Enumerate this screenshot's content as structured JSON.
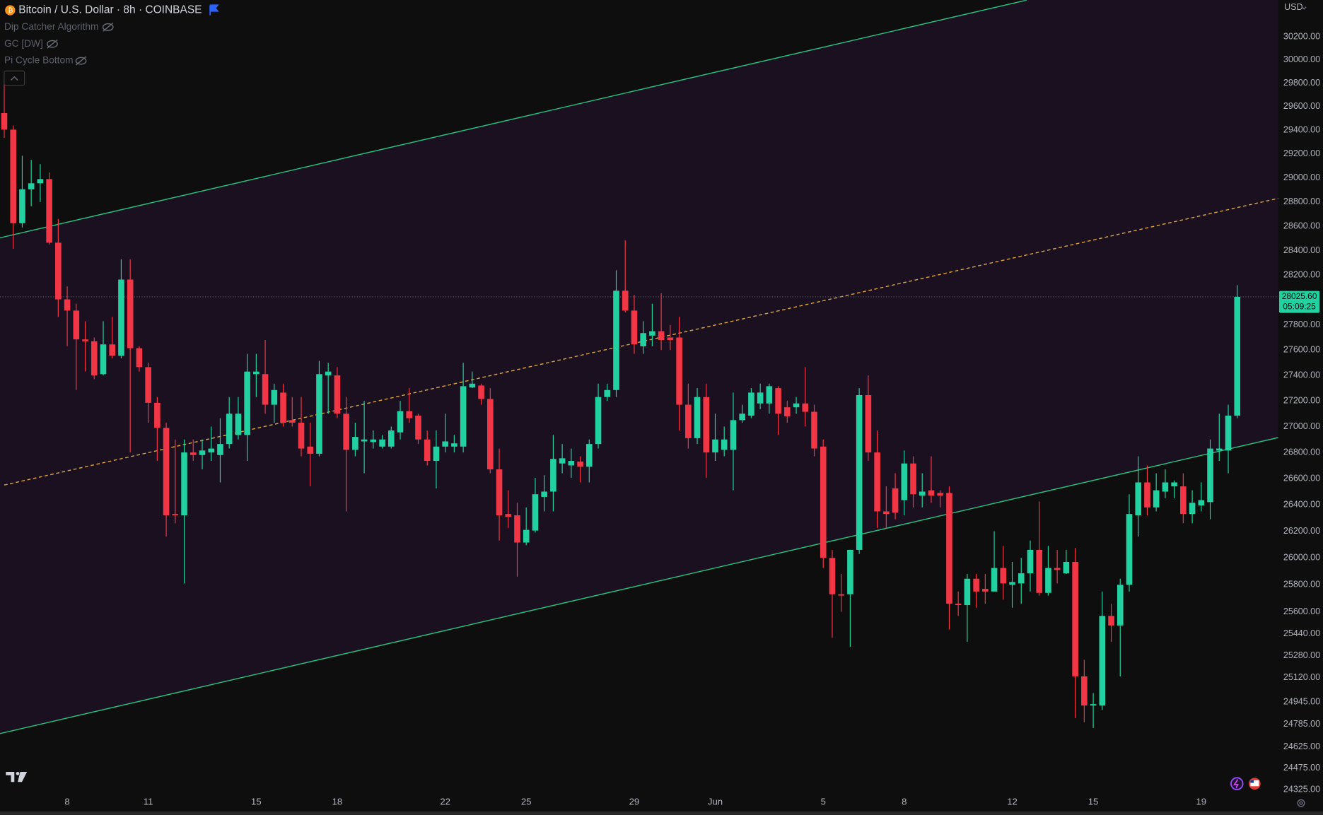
{
  "chart_data": {
    "type": "candlestick",
    "title": "Bitcoin / U.S. Dollar · 8h · COINBASE",
    "indicators": [
      "Dip Catcher Algorithm",
      "GC [DW]",
      "Pi Cycle Bottom"
    ],
    "currency": "USD",
    "log_scale": true,
    "up_color": "#22d1a0",
    "down_color": "#f23645",
    "xlim": [
      -0.47,
      141.56
    ],
    "ylim": [
      24290,
      30520
    ],
    "xticks": [
      {
        "value": 7,
        "label": "8"
      },
      {
        "value": 16,
        "label": "11"
      },
      {
        "value": 28,
        "label": "15"
      },
      {
        "value": 37,
        "label": "18"
      },
      {
        "value": 49,
        "label": "22"
      },
      {
        "value": 58,
        "label": "25"
      },
      {
        "value": 70,
        "label": "29"
      },
      {
        "value": 79,
        "label": "Jun"
      },
      {
        "value": 91,
        "label": "5"
      },
      {
        "value": 100,
        "label": "8"
      },
      {
        "value": 112,
        "label": "12"
      },
      {
        "value": 121,
        "label": "15"
      },
      {
        "value": 133,
        "label": "19"
      }
    ],
    "yticks": [
      {
        "value": 30200,
        "label": "30200.00"
      },
      {
        "value": 30000,
        "label": "30000.00"
      },
      {
        "value": 29800,
        "label": "29800.00"
      },
      {
        "value": 29600,
        "label": "29600.00"
      },
      {
        "value": 29400,
        "label": "29400.00"
      },
      {
        "value": 29200,
        "label": "29200.00"
      },
      {
        "value": 29000,
        "label": "29000.00"
      },
      {
        "value": 28800,
        "label": "28800.00"
      },
      {
        "value": 28600,
        "label": "28600.00"
      },
      {
        "value": 28400,
        "label": "28400.00"
      },
      {
        "value": 28200,
        "label": "28200.00"
      },
      {
        "value": 27800,
        "label": "27800.00"
      },
      {
        "value": 27600,
        "label": "27600.00"
      },
      {
        "value": 27400,
        "label": "27400.00"
      },
      {
        "value": 27200,
        "label": "27200.00"
      },
      {
        "value": 27000,
        "label": "27000.00"
      },
      {
        "value": 26800,
        "label": "26800.00"
      },
      {
        "value": 26600,
        "label": "26600.00"
      },
      {
        "value": 26400,
        "label": "26400.00"
      },
      {
        "value": 26200,
        "label": "26200.00"
      },
      {
        "value": 26000,
        "label": "26000.00"
      },
      {
        "value": 25800,
        "label": "25800.00"
      },
      {
        "value": 25600,
        "label": "25600.00"
      },
      {
        "value": 25440,
        "label": "25440.00"
      },
      {
        "value": 25280,
        "label": "25280.00"
      },
      {
        "value": 25120,
        "label": "25120.00"
      },
      {
        "value": 24945,
        "label": "24945.00"
      },
      {
        "value": 24785,
        "label": "24785.00"
      },
      {
        "value": 24625,
        "label": "24625.00"
      },
      {
        "value": 24475,
        "label": "24475.00"
      },
      {
        "value": 24325,
        "label": "24325.00"
      }
    ],
    "last_price": {
      "value": 28025.6,
      "label": "28025.60"
    },
    "countdown": "05:09:25",
    "open": [
      29545,
      29405,
      28625,
      28905,
      28955,
      28990,
      28465,
      28005,
      27915,
      27685,
      27670,
      27410,
      27645,
      27555,
      28165,
      27615,
      27465,
      27185,
      26990,
      26330,
      26320,
      26800,
      26780,
      26800,
      26780,
      26865,
      26935,
      26935,
      27410,
      27410,
      27170,
      27265,
      27050,
      27030,
      26845,
      26790,
      27400,
      27400,
      27100,
      26820,
      26885,
      26880,
      26845,
      26845,
      26955,
      27120,
      27085,
      26900,
      26735,
      26845,
      26845,
      26845,
      27305,
      27320,
      27215,
      26670,
      26330,
      26320,
      26115,
      26205,
      26460,
      26500,
      26715,
      26700,
      26730,
      26690,
      26865,
      27230,
      27285,
      28075,
      27915,
      27630,
      27715,
      27750,
      27700,
      27700,
      27170,
      26910,
      27230,
      26800,
      26820,
      26820,
      27050,
      27085,
      27180,
      27180,
      27300,
      27150,
      27150,
      27180,
      27115,
      26845,
      26000,
      25730,
      25730,
      26060,
      27245,
      26800,
      26350,
      26525,
      26435,
      26715,
      26470,
      26510,
      26490,
      26490,
      25660,
      25650,
      25845,
      25770,
      25750,
      25925,
      25800,
      25810,
      25885,
      26060,
      25740,
      25925,
      25885,
      25970,
      25130,
      24920,
      24920,
      25570,
      25500,
      25800,
      26320,
      26570,
      26380,
      26500,
      26540,
      26540,
      26330,
      26395,
      26420,
      26815,
      26815,
      27085
    ],
    "high": [
      29830,
      29440,
      29185,
      29150,
      29115,
      29045,
      28660,
      28110,
      27970,
      27830,
      27700,
      27830,
      27865,
      28330,
      28330,
      27630,
      27500,
      27230,
      27030,
      26900,
      26900,
      26900,
      26900,
      27000,
      27065,
      27230,
      27230,
      27570,
      27570,
      27680,
      27335,
      27335,
      27230,
      27230,
      27030,
      27515,
      27500,
      27465,
      27230,
      27030,
      27200,
      26970,
      26935,
      27000,
      27200,
      27300,
      27100,
      26970,
      26970,
      27100,
      26935,
      27500,
      27430,
      27335,
      27300,
      26830,
      26510,
      26415,
      26380,
      26605,
      26625,
      26935,
      26865,
      26830,
      26770,
      26900,
      27335,
      27335,
      28240,
      28485,
      28040,
      27830,
      27970,
      28055,
      27800,
      27865,
      27335,
      27300,
      27335,
      27100,
      27000,
      27265,
      27170,
      27300,
      27335,
      27335,
      27315,
      27200,
      27230,
      27465,
      27170,
      26900,
      26060,
      25880,
      26060,
      27300,
      27400,
      26970,
      26540,
      26640,
      26815,
      26770,
      26640,
      26770,
      26510,
      26540,
      25750,
      25880,
      25880,
      25880,
      26200,
      26090,
      25970,
      26000,
      26130,
      26425,
      26090,
      26060,
      26060,
      26075,
      25250,
      25010,
      25750,
      25660,
      25845,
      26480,
      26770,
      26700,
      26640,
      26670,
      26585,
      26640,
      26510,
      26570,
      26900,
      27100,
      27170,
      28120
    ],
    "low": [
      29335,
      28415,
      28590,
      28765,
      28800,
      28450,
      27865,
      27630,
      27285,
      27430,
      27370,
      27400,
      27535,
      27535,
      26800,
      27430,
      27030,
      26735,
      26160,
      26260,
      25810,
      26735,
      26670,
      26735,
      26570,
      26830,
      26900,
      26735,
      27230,
      27100,
      27030,
      27000,
      27000,
      26770,
      26540,
      26770,
      27100,
      27065,
      26350,
      26770,
      26640,
      26830,
      26830,
      26830,
      26900,
      27030,
      26865,
      26700,
      26525,
      26800,
      26800,
      26800,
      27300,
      27170,
      26640,
      26130,
      26225,
      25860,
      26095,
      26190,
      26350,
      26350,
      26640,
      26605,
      26570,
      26570,
      26830,
      27200,
      27230,
      27900,
      27570,
      27570,
      27630,
      27600,
      27600,
      26970,
      26830,
      26865,
      26605,
      26735,
      26770,
      26510,
      27030,
      27065,
      27135,
      27100,
      26935,
      27030,
      27100,
      27000,
      26770,
      25925,
      25410,
      25600,
      25345,
      26030,
      26735,
      26225,
      26225,
      26290,
      26320,
      26380,
      26380,
      26415,
      26380,
      25470,
      25570,
      25380,
      25630,
      25660,
      25750,
      25690,
      25630,
      25660,
      25750,
      25720,
      25720,
      25810,
      25880,
      24830,
      24800,
      24760,
      24890,
      25380,
      25130,
      25750,
      26160,
      26320,
      26350,
      26450,
      26450,
      26260,
      26260,
      26350,
      26290,
      26735,
      26640,
      27065
    ],
    "close": [
      29405,
      28625,
      28905,
      28955,
      28990,
      28465,
      28005,
      27915,
      27685,
      27670,
      27400,
      27645,
      27555,
      28165,
      27615,
      27465,
      27185,
      26990,
      26320,
      26320,
      26800,
      26780,
      26815,
      26830,
      26865,
      27100,
      27100,
      27430,
      27430,
      27170,
      27285,
      27030,
      27030,
      26830,
      26790,
      27410,
      27430,
      27100,
      26820,
      26920,
      26900,
      26900,
      26900,
      26970,
      27120,
      27065,
      26900,
      26735,
      26845,
      26885,
      26870,
      27315,
      27335,
      27215,
      26670,
      26320,
      26310,
      26115,
      26210,
      26480,
      26500,
      26750,
      26755,
      26735,
      26690,
      26865,
      27230,
      27285,
      28075,
      27915,
      27645,
      27735,
      27750,
      27680,
      27680,
      27170,
      26910,
      27230,
      26800,
      26900,
      26900,
      27050,
      27100,
      27265,
      27265,
      27315,
      27100,
      27080,
      27180,
      27115,
      26830,
      26000,
      25730,
      25720,
      26060,
      27245,
      26800,
      26350,
      26330,
      26340,
      26715,
      26480,
      26500,
      26470,
      26470,
      25660,
      25650,
      25845,
      25750,
      25750,
      25925,
      25810,
      25820,
      25885,
      26060,
      25740,
      25925,
      25910,
      25970,
      25130,
      24920,
      24930,
      25570,
      25500,
      25800,
      26330,
      26570,
      26380,
      26510,
      26570,
      26570,
      26330,
      26415,
      26435,
      26830,
      26830,
      27085,
      28025.6
    ],
    "trend_lines": [
      {
        "color": "#26c281",
        "dashed": false,
        "x": [
          -0.47,
          113.6
        ],
        "y": [
          28505,
          30520
        ]
      },
      {
        "color": "#d9a23a",
        "dashed": true,
        "x": [
          0,
          141.56
        ],
        "y": [
          26550,
          28830
        ]
      },
      {
        "color": "#26c281",
        "dashed": false,
        "x": [
          -0.47,
          141.56
        ],
        "y": [
          24720,
          26915
        ]
      }
    ]
  }
}
